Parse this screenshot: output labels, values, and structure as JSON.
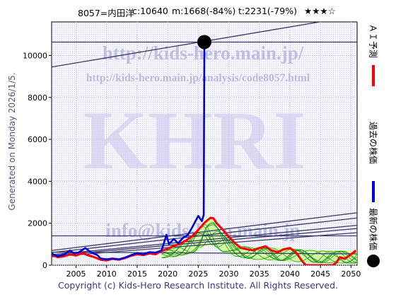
{
  "header": {
    "code_name": "8057=内田洋",
    "current": "c:10640",
    "min": "m:1668(-84%)",
    "target": "t:2231(-79%)",
    "rating": "★★★☆"
  },
  "side_label": "Generated on Monday 2026/1/5.",
  "footer": "Copyright (c) Kids-Hero Research Institute. All Rights Reserved.",
  "watermark": {
    "big": "KHRI",
    "url1": "http://kids-hero.main.jp/",
    "url2": "http://kids-hero.main.jp/analysis/code8057.html",
    "email": "info@kids-hero.main.jp"
  },
  "legend": [
    {
      "label": "ＡＩ予測",
      "color": "#ff0000",
      "icon": "red-line"
    },
    {
      "label": "過去の株価",
      "color": "#0000dd",
      "icon": "blue-line"
    },
    {
      "label": "最新の株価",
      "color": "#000000",
      "icon": "black-dot"
    }
  ],
  "chart_data": {
    "type": "line",
    "xlim": [
      2001,
      2051
    ],
    "ylim": [
      0,
      11600
    ],
    "x_ticks": [
      2005,
      2010,
      2015,
      2020,
      2025,
      2030,
      2035,
      2040,
      2045,
      2050
    ],
    "y_ticks": [
      0,
      2000,
      4000,
      6000,
      8000,
      10000
    ],
    "latest": {
      "x": 2026.0,
      "y": 10640
    },
    "series": [
      {
        "role": "past",
        "color": "#0000dd",
        "points": [
          [
            2001,
            550
          ],
          [
            2002,
            420
          ],
          [
            2003,
            500
          ],
          [
            2004,
            700
          ],
          [
            2004.7,
            550
          ],
          [
            2005.5,
            620
          ],
          [
            2006.5,
            820
          ],
          [
            2007.5,
            600
          ],
          [
            2008.5,
            480
          ],
          [
            2009,
            320
          ],
          [
            2010,
            280
          ],
          [
            2011,
            320
          ],
          [
            2012,
            280
          ],
          [
            2013,
            360
          ],
          [
            2014,
            480
          ],
          [
            2015,
            580
          ],
          [
            2016,
            520
          ],
          [
            2017,
            620
          ],
          [
            2018,
            600
          ],
          [
            2019,
            700
          ],
          [
            2019.8,
            1450
          ],
          [
            2020.2,
            1000
          ],
          [
            2021,
            1250
          ],
          [
            2021.7,
            1050
          ],
          [
            2022.5,
            1300
          ],
          [
            2023.3,
            1450
          ],
          [
            2024,
            1800
          ],
          [
            2025,
            2350
          ],
          [
            2025.6,
            2100
          ],
          [
            2025.9,
            2400
          ],
          [
            2026,
            10640
          ]
        ]
      },
      {
        "role": "ai",
        "color": "#ff0000",
        "points": [
          [
            2001,
            500
          ],
          [
            2002,
            380
          ],
          [
            2003,
            420
          ],
          [
            2004,
            520
          ],
          [
            2005,
            460
          ],
          [
            2006,
            580
          ],
          [
            2007,
            470
          ],
          [
            2008,
            380
          ],
          [
            2009,
            260
          ],
          [
            2010,
            230
          ],
          [
            2011,
            300
          ],
          [
            2012,
            260
          ],
          [
            2013,
            340
          ],
          [
            2014,
            450
          ],
          [
            2015,
            520
          ],
          [
            2016,
            480
          ],
          [
            2017,
            560
          ],
          [
            2018,
            520
          ],
          [
            2019,
            680
          ],
          [
            2020,
            780
          ],
          [
            2021,
            920
          ],
          [
            2022,
            1020
          ],
          [
            2023,
            1180
          ],
          [
            2024,
            1380
          ],
          [
            2025,
            1680
          ],
          [
            2026,
            2020
          ],
          [
            2027,
            2260
          ],
          [
            2027.5,
            2230
          ],
          [
            2028,
            2000
          ],
          [
            2029,
            1700
          ],
          [
            2030,
            1350
          ],
          [
            2031,
            1050
          ],
          [
            2032,
            820
          ],
          [
            2033,
            760
          ],
          [
            2034,
            700
          ],
          [
            2035,
            820
          ],
          [
            2036,
            900
          ],
          [
            2037,
            700
          ],
          [
            2038,
            620
          ],
          [
            2039,
            760
          ],
          [
            2040,
            820
          ],
          [
            2041,
            600
          ],
          [
            2042,
            200
          ],
          [
            2042.6,
            0
          ],
          [
            2047,
            0
          ],
          [
            2047.6,
            120
          ],
          [
            2048.2,
            380
          ],
          [
            2049,
            300
          ],
          [
            2050,
            520
          ],
          [
            2050.8,
            700
          ]
        ]
      }
    ],
    "trend_lines": [
      {
        "p1": [
          2001,
          9450
        ],
        "p2": [
          2051,
          11900
        ],
        "color": "#3a3a6a"
      },
      {
        "p1": [
          2001,
          10640
        ],
        "p2": [
          2051,
          10640
        ],
        "color": "#3a3a6a"
      },
      {
        "p1": [
          2001,
          700
        ],
        "p2": [
          2051,
          2500
        ],
        "color": "#3a3a6a"
      },
      {
        "p1": [
          2001,
          600
        ],
        "p2": [
          2051,
          2250
        ],
        "color": "#3a3a6a"
      },
      {
        "p1": [
          2001,
          1400
        ],
        "p2": [
          2051,
          1400
        ],
        "color": "#3a3a6a"
      },
      {
        "p1": [
          2001,
          500
        ],
        "p2": [
          2051,
          1900
        ],
        "color": "#3a3a6a"
      },
      {
        "p1": [
          2001,
          450
        ],
        "p2": [
          2051,
          1750
        ],
        "color": "#3a3a6a"
      },
      {
        "p1": [
          2001,
          400
        ],
        "p2": [
          2051,
          1550
        ],
        "color": "#3a3a6a"
      },
      {
        "p1": [
          2001,
          620
        ],
        "p2": [
          2051,
          540
        ],
        "color": "#3a3a6a"
      }
    ],
    "band_upper": [
      [
        2019,
        700
      ],
      [
        2021,
        820
      ],
      [
        2023,
        1200
      ],
      [
        2024.5,
        1500
      ],
      [
        2025.5,
        1900
      ],
      [
        2026.3,
        2300
      ],
      [
        2027.5,
        2100
      ],
      [
        2029,
        1500
      ],
      [
        2031,
        1000
      ],
      [
        2034,
        850
      ],
      [
        2038,
        850
      ],
      [
        2042,
        760
      ],
      [
        2046,
        700
      ],
      [
        2051,
        700
      ]
    ],
    "band_lower": [
      [
        2019,
        320
      ],
      [
        2021,
        380
      ],
      [
        2023,
        480
      ],
      [
        2024.5,
        600
      ],
      [
        2025.5,
        780
      ],
      [
        2026.3,
        1000
      ],
      [
        2027.5,
        900
      ],
      [
        2029,
        600
      ],
      [
        2031,
        400
      ],
      [
        2034,
        250
      ],
      [
        2038,
        200
      ],
      [
        2042,
        120
      ],
      [
        2046,
        80
      ],
      [
        2051,
        60
      ]
    ],
    "wave_color": "#1a8a1a",
    "band_color": "#ccff99"
  }
}
